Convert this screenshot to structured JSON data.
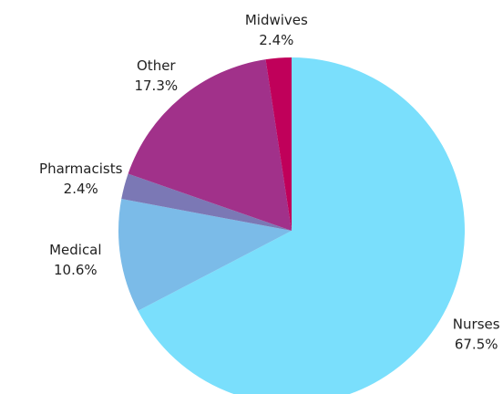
{
  "chart_data": {
    "type": "pie",
    "categories": [
      "Nurses",
      "Medical",
      "Pharmacists",
      "Other",
      "Midwives"
    ],
    "values": [
      67.5,
      10.6,
      2.4,
      17.3,
      2.4
    ],
    "value_labels": [
      "67.5%",
      "10.6%",
      "2.4%",
      "17.3%",
      "2.4%"
    ],
    "colors": [
      "#7adffc",
      "#7bbbe8",
      "#7b78b5",
      "#a1318a",
      "#c0005a"
    ]
  }
}
